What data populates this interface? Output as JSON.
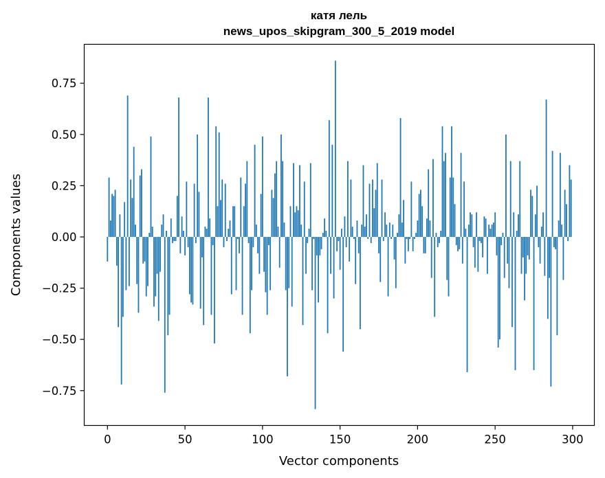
{
  "chart_data": {
    "type": "bar",
    "title": "катя лель",
    "subtitle": "news_upos_skipgram_300_5_2019 model",
    "xlabel": "Vector components",
    "ylabel": "Components values",
    "xlim": [
      -15,
      314
    ],
    "ylim": [
      -0.92,
      0.94
    ],
    "xticks": [
      0,
      50,
      100,
      150,
      200,
      250,
      300
    ],
    "yticks": [
      -0.75,
      -0.5,
      -0.25,
      0.0,
      0.25,
      0.5,
      0.75
    ],
    "ytick_labels": [
      "−0.75",
      "−0.50",
      "−0.25",
      "0.00",
      "0.25",
      "0.50",
      "0.75"
    ],
    "grid": false,
    "bar_color": "#1f77b4",
    "x": "0..299",
    "values": [
      -0.12,
      0.29,
      0.08,
      0.21,
      0.2,
      0.23,
      -0.14,
      -0.44,
      0.11,
      -0.72,
      -0.39,
      0.17,
      -0.26,
      0.69,
      -0.24,
      0.28,
      0.19,
      0.44,
      0.06,
      -0.23,
      -0.37,
      0.3,
      0.33,
      -0.13,
      -0.12,
      -0.29,
      -0.24,
      0.02,
      0.49,
      0.05,
      -0.34,
      -0.29,
      -0.18,
      -0.41,
      -0.17,
      0.06,
      0.11,
      -0.76,
      0.03,
      -0.48,
      -0.38,
      0.09,
      -0.03,
      -0.02,
      -0.02,
      0.2,
      0.68,
      -0.08,
      0.1,
      0.03,
      -0.09,
      0.27,
      -0.05,
      -0.28,
      -0.32,
      -0.33,
      0.26,
      -0.03,
      0.5,
      0.22,
      -0.35,
      -0.1,
      -0.43,
      0.05,
      0.04,
      0.68,
      0.09,
      -0.38,
      -0.04,
      -0.52,
      0.54,
      0.15,
      0.51,
      0.18,
      0.28,
      -0.05,
      0.26,
      -0.02,
      0.04,
      0.08,
      -0.28,
      0.15,
      0.15,
      -0.26,
      -0.01,
      -0.08,
      0.29,
      -0.38,
      0.15,
      0.26,
      0.37,
      -0.03,
      -0.47,
      -0.26,
      -0.05,
      0.45,
      0.06,
      -0.08,
      -0.18,
      0.21,
      0.49,
      -0.17,
      -0.27,
      -0.38,
      -0.04,
      -0.26,
      0.23,
      0.19,
      0.31,
      0.37,
      0.05,
      -0.15,
      0.5,
      0.37,
      0.07,
      -0.26,
      -0.68,
      -0.25,
      0.15,
      -0.34,
      0.36,
      0.12,
      0.15,
      0.13,
      0.35,
      0.06,
      -0.43,
      0.27,
      -0.18,
      -0.03,
      0.04,
      0.36,
      -0.26,
      -0.01,
      -0.84,
      -0.09,
      -0.32,
      -0.09,
      -0.06,
      0.02,
      0.09,
      0.03,
      -0.47,
      0.57,
      -0.18,
      0.45,
      -0.3,
      0.86,
      -0.07,
      -0.02,
      -0.16,
      0.04,
      -0.56,
      0.1,
      -0.05,
      0.37,
      -0.12,
      0.28,
      0.05,
      -0.01,
      -0.23,
      0.08,
      -0.08,
      -0.45,
      0.06,
      0.35,
      0.05,
      0.11,
      -0.01,
      0.26,
      -0.03,
      0.28,
      0.14,
      0.23,
      0.36,
      -0.08,
      -0.22,
      0.28,
      -0.02,
      0.12,
      0.06,
      -0.29,
      0.07,
      -0.01,
      0.06,
      -0.11,
      -0.25,
      0.02,
      0.11,
      0.58,
      0.07,
      0.18,
      -0.13,
      -0.01,
      -0.07,
      -0.01,
      0.27,
      -0.07,
      -0.01,
      0.02,
      0.08,
      0.21,
      0.23,
      0.15,
      -0.08,
      -0.08,
      0.09,
      0.33,
      0.08,
      -0.2,
      0.38,
      -0.39,
      0.02,
      -0.05,
      -0.03,
      0.03,
      0.54,
      0.37,
      0.41,
      -0.21,
      -0.29,
      0.29,
      0.54,
      0.29,
      0.16,
      -0.04,
      -0.07,
      -0.06,
      0.41,
      -0.13,
      0.27,
      0.04,
      -0.66,
      0.06,
      0.12,
      0.11,
      -0.05,
      -0.15,
      0.12,
      -0.17,
      -0.02,
      -0.03,
      -0.1,
      0.1,
      0.09,
      -0.18,
      0.06,
      0.04,
      0.06,
      0.07,
      0.12,
      -0.09,
      -0.54,
      -0.5,
      -0.04,
      0.02,
      -0.2,
      0.5,
      -0.13,
      -0.25,
      0.37,
      -0.44,
      0.12,
      -0.65,
      0.03,
      0.11,
      0.37,
      -0.18,
      -0.1,
      -0.31,
      -0.18,
      -0.09,
      -0.11,
      0.23,
      0.2,
      -0.65,
      0.11,
      0.25,
      -0.05,
      -0.13,
      0.05,
      0.12,
      -0.19,
      0.67,
      -0.4,
      -0.2,
      -0.73,
      0.42,
      -0.05,
      -0.06,
      -0.48,
      0.08,
      0.41,
      0.06,
      -0.21,
      0.23,
      0.16,
      -0.02,
      0.35,
      0.28
    ]
  }
}
